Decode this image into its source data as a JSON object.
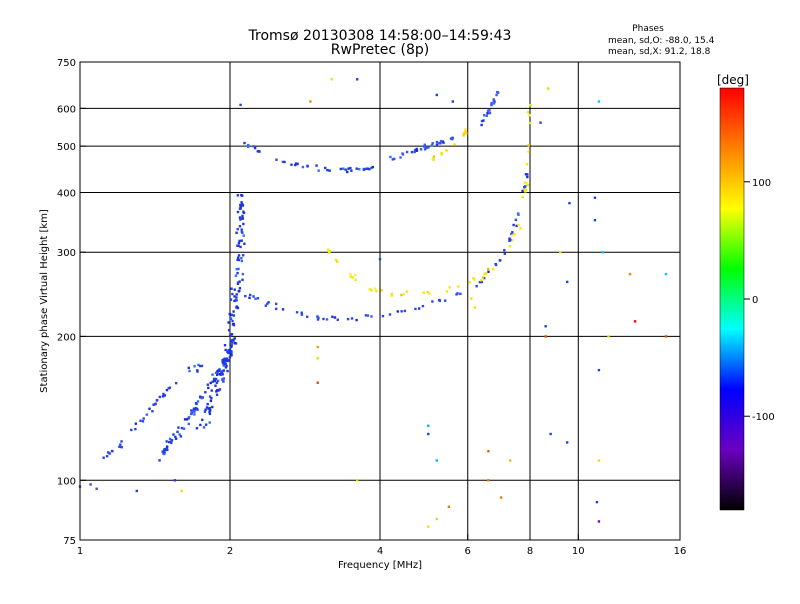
{
  "chart_data": {
    "type": "scatter",
    "title_line1": "Tromsø 20130308 14:58:00–14:59:43",
    "title_line2": "RwPretec (8p)",
    "info": {
      "heading": "Phases",
      "line1": "mean, sd,O: -88.0, 15.4",
      "line2": "mean, sd,X:  91.2, 18.8"
    },
    "xlabel": "Frequency [MHz]",
    "ylabel": "Stationary phase Virtual Height [km]",
    "x_scale": "log",
    "y_scale": "log",
    "xlim": [
      1,
      16
    ],
    "ylim": [
      75,
      750
    ],
    "x_ticks": [
      {
        "v": 1,
        "label": "1"
      },
      {
        "v": 2,
        "label": "2"
      },
      {
        "v": 4,
        "label": "4"
      },
      {
        "v": 6,
        "label": "6"
      },
      {
        "v": 8,
        "label": "8"
      },
      {
        "v": 10,
        "label": "10"
      },
      {
        "v": 16,
        "label": "16"
      }
    ],
    "y_ticks": [
      {
        "v": 75,
        "label": "75"
      },
      {
        "v": 100,
        "label": "100"
      },
      {
        "v": 200,
        "label": "200"
      },
      {
        "v": 300,
        "label": "300"
      },
      {
        "v": 400,
        "label": "400"
      },
      {
        "v": 500,
        "label": "500"
      },
      {
        "v": 600,
        "label": "600"
      },
      {
        "v": 750,
        "label": "750"
      }
    ],
    "x_grid": [
      2,
      4,
      6,
      8,
      10
    ],
    "y_grid": [
      100,
      200,
      300,
      400,
      500,
      600
    ],
    "colorbar": {
      "label": "[deg]",
      "range": [
        -180,
        180
      ],
      "ticks": [
        {
          "v": 100,
          "label": "100"
        },
        {
          "v": 0,
          "label": "0"
        },
        {
          "v": -100,
          "label": "-100"
        }
      ],
      "stops": [
        "#ff0000",
        "#ff8000",
        "#ffff00",
        "#00ff00",
        "#00ffff",
        "#0000ff",
        "#6a00c0",
        "#000000"
      ]
    },
    "colors": {
      "o_mode": "#1e30e6",
      "x_mode": "#f0e000",
      "grid": "#000000"
    },
    "traces": [
      {
        "mode": "O",
        "color": "#2040e0",
        "n": 90,
        "noise": [
          0.015,
          0.03
        ],
        "pts": [
          [
            1.45,
            112
          ],
          [
            1.5,
            118
          ],
          [
            1.6,
            128
          ],
          [
            1.7,
            140
          ],
          [
            1.8,
            155
          ],
          [
            1.9,
            170
          ],
          [
            2.0,
            185
          ],
          [
            2.05,
            200
          ]
        ]
      },
      {
        "mode": "O",
        "color": "#1a3adf",
        "n": 140,
        "noise": [
          0.03,
          0.05
        ],
        "pts": [
          [
            1.75,
            130
          ],
          [
            1.85,
            150
          ],
          [
            1.95,
            170
          ],
          [
            2.0,
            200
          ],
          [
            2.05,
            240
          ],
          [
            2.1,
            290
          ],
          [
            2.1,
            340
          ],
          [
            2.12,
            400
          ]
        ]
      },
      {
        "mode": "O",
        "color": "#2a48e8",
        "n": 70,
        "noise": [
          0.012,
          0.02
        ],
        "pts": [
          [
            2.05,
            250
          ],
          [
            2.3,
            238
          ],
          [
            2.6,
            226
          ],
          [
            3.0,
            218
          ],
          [
            3.4,
            216
          ],
          [
            4.0,
            220
          ],
          [
            4.8,
            230
          ],
          [
            5.6,
            242
          ],
          [
            6.4,
            262
          ],
          [
            7.0,
            290
          ],
          [
            7.4,
            330
          ],
          [
            7.7,
            380
          ],
          [
            7.9,
            450
          ]
        ]
      },
      {
        "mode": "O",
        "color": "#2038d8",
        "n": 40,
        "noise": [
          0.01,
          0.02
        ],
        "pts": [
          [
            2.1,
            510
          ],
          [
            2.4,
            475
          ],
          [
            2.8,
            452
          ],
          [
            3.2,
            445
          ],
          [
            3.6,
            446
          ],
          [
            3.9,
            452
          ]
        ]
      },
      {
        "mode": "O",
        "color": "#3050ee",
        "n": 30,
        "noise": [
          0.01,
          0.02
        ],
        "pts": [
          [
            4.2,
            470
          ],
          [
            4.7,
            490
          ],
          [
            5.2,
            505
          ],
          [
            5.6,
            520
          ]
        ]
      },
      {
        "mode": "X",
        "color": "#f5e800",
        "n": 60,
        "noise": [
          0.012,
          0.02
        ],
        "pts": [
          [
            3.1,
            310
          ],
          [
            3.4,
            275
          ],
          [
            3.8,
            252
          ],
          [
            4.2,
            245
          ],
          [
            4.8,
            246
          ],
          [
            5.6,
            252
          ],
          [
            6.4,
            265
          ],
          [
            7.1,
            295
          ],
          [
            7.6,
            340
          ],
          [
            7.85,
            410
          ],
          [
            7.95,
            500
          ],
          [
            8.0,
            620
          ]
        ]
      },
      {
        "mode": "O",
        "color": "#2a44e4",
        "n": 40,
        "noise": [
          0.015,
          0.03
        ],
        "pts": [
          [
            1.1,
            110
          ],
          [
            1.2,
            118
          ],
          [
            1.35,
            135
          ],
          [
            1.45,
            150
          ],
          [
            1.6,
            165
          ],
          [
            1.75,
            175
          ]
        ]
      },
      {
        "mode": "O",
        "color": "#3a5cf0",
        "n": 20,
        "noise": [
          0.01,
          0.02
        ],
        "pts": [
          [
            6.4,
            560
          ],
          [
            6.7,
            610
          ],
          [
            6.9,
            650
          ]
        ]
      },
      {
        "mode": "X",
        "color": "#ffd000",
        "n": 12,
        "noise": [
          0.01,
          0.02
        ],
        "pts": [
          [
            5.0,
            460
          ],
          [
            5.6,
            500
          ],
          [
            6.0,
            540
          ]
        ]
      }
    ],
    "scatter_points": [
      [
        1.0,
        97,
        "#3050e0"
      ],
      [
        1.05,
        98,
        "#3050e0"
      ],
      [
        1.08,
        96,
        "#3050e0"
      ],
      [
        1.3,
        95,
        "#2040e0"
      ],
      [
        1.55,
        100,
        "#2040e0"
      ],
      [
        1.6,
        95,
        "#f0e000"
      ],
      [
        3.0,
        160,
        "#e05000"
      ],
      [
        3.6,
        100,
        "#e0e000"
      ],
      [
        5.0,
        80,
        "#f0e000"
      ],
      [
        5.2,
        83,
        "#e0e000"
      ],
      [
        5.5,
        88,
        "#f07000"
      ],
      [
        6.6,
        115,
        "#e06000"
      ],
      [
        7.0,
        92,
        "#e08000"
      ],
      [
        7.3,
        110,
        "#f0c000"
      ],
      [
        5.0,
        130,
        "#20a0ff"
      ],
      [
        5.0,
        125,
        "#2040e0"
      ],
      [
        9.5,
        120,
        "#2040e0"
      ],
      [
        8.8,
        125,
        "#2040e0"
      ],
      [
        8.6,
        210,
        "#2040e0"
      ],
      [
        8.6,
        200,
        "#e05000"
      ],
      [
        9.5,
        260,
        "#2040e0"
      ],
      [
        9.2,
        300,
        "#f0e000"
      ],
      [
        9.6,
        380,
        "#2040e0"
      ],
      [
        10.8,
        390,
        "#2040e0"
      ],
      [
        10.8,
        350,
        "#2040e0"
      ],
      [
        11.2,
        300,
        "#00c8ff"
      ],
      [
        12.7,
        270,
        "#ff8000"
      ],
      [
        13.0,
        215,
        "#ff0000"
      ],
      [
        11.5,
        200,
        "#e0e000"
      ],
      [
        15.0,
        270,
        "#00c8ff"
      ],
      [
        15.0,
        200,
        "#e05000"
      ],
      [
        10.9,
        90,
        "#2040e0"
      ],
      [
        11.0,
        82,
        "#8000c0"
      ],
      [
        11.0,
        620,
        "#00c8ff"
      ],
      [
        8.7,
        660,
        "#e0e000"
      ],
      [
        8.4,
        560,
        "#2040e0"
      ],
      [
        5.6,
        620,
        "#2040e0"
      ],
      [
        5.2,
        640,
        "#2040e0"
      ],
      [
        3.6,
        690,
        "#2040e0"
      ],
      [
        3.2,
        690,
        "#f0e000"
      ],
      [
        2.9,
        620,
        "#ff8000"
      ],
      [
        2.1,
        610,
        "#2040e0"
      ],
      [
        3.0,
        180,
        "#e0e000"
      ],
      [
        3.0,
        190,
        "#f0a000"
      ],
      [
        11.0,
        170,
        "#2040e0"
      ],
      [
        11.0,
        110,
        "#f0e000"
      ],
      [
        5.2,
        110,
        "#20a0ff"
      ],
      [
        6.6,
        100,
        "#e08000"
      ],
      [
        4.0,
        290,
        "#2040e0"
      ],
      [
        6.1,
        240,
        "#f0e000"
      ],
      [
        6.2,
        230,
        "#f0e000"
      ]
    ]
  }
}
